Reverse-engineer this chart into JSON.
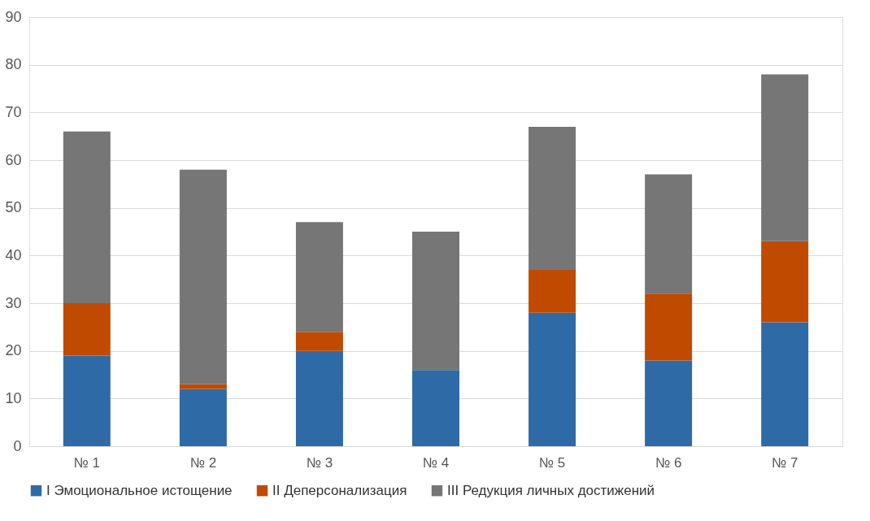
{
  "chart_data": {
    "type": "bar",
    "stacked": true,
    "categories": [
      "№ 1",
      "№ 2",
      "№ 3",
      "№ 4",
      "№ 5",
      "№ 6",
      "№ 7"
    ],
    "series": [
      {
        "name": "I Эмоциональное истощение",
        "color": "#2e6aa6",
        "values": [
          19,
          12,
          20,
          16,
          28,
          18,
          26
        ]
      },
      {
        "name": "II Деперсонализация",
        "color": "#c04a00",
        "values": [
          11,
          1,
          4,
          0,
          9,
          14,
          17
        ]
      },
      {
        "name": "III Редукция личных достижений",
        "color": "#767676",
        "values": [
          36,
          45,
          23,
          29,
          30,
          25,
          35
        ]
      }
    ],
    "ylim": [
      0,
      90
    ],
    "yticks": [
      0,
      10,
      20,
      30,
      40,
      50,
      60,
      70,
      80,
      90
    ],
    "grid": "y",
    "legend": "bottom"
  }
}
